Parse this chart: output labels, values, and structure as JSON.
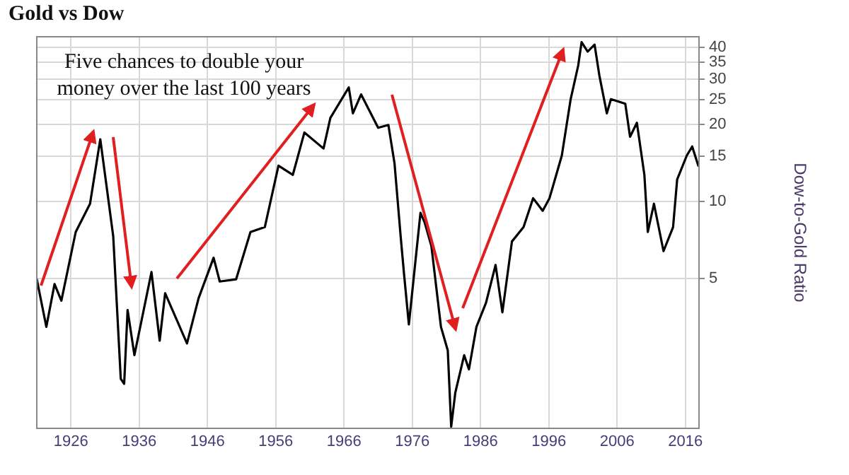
{
  "chart_data": {
    "type": "line",
    "title": "Gold vs Dow",
    "ylabel": "Dow-to-Gold Ratio",
    "annotations": [
      "Five chances to double your money over the last 100 years"
    ],
    "x": [
      1921.0,
      1922.4,
      1923.6,
      1924.6,
      1926.7,
      1928.8,
      1930.3,
      1931.0,
      1932.2,
      1933.3,
      1933.8,
      1934.3,
      1935.3,
      1937.8,
      1939.0,
      1939.8,
      1943.0,
      1944.7,
      1946.9,
      1947.8,
      1950.2,
      1952.3,
      1954.4,
      1956.4,
      1958.5,
      1960.2,
      1963.0,
      1964.0,
      1966.7,
      1967.3,
      1968.5,
      1971.0,
      1972.5,
      1973.4,
      1974.3,
      1974.8,
      1975.5,
      1977.2,
      1977.8,
      1978.8,
      1980.2,
      1981.2,
      1981.7,
      1982.3,
      1983.6,
      1984.3,
      1985.4,
      1986.8,
      1988.2,
      1989.2,
      1990.6,
      1992.3,
      1993.7,
      1995.1,
      1996.1,
      1997.9,
      1999.2,
      2000.3,
      2000.8,
      2001.7,
      2002.7,
      2003.4,
      2004.5,
      2005.1,
      2007.2,
      2007.9,
      2008.9,
      2010.0,
      2010.5,
      2011.4,
      2012.8,
      2014.2,
      2014.8,
      2016.2,
      2017.0,
      2017.9
    ],
    "series": [
      {
        "color": "#000000",
        "values": [
          4.97,
          3.24,
          4.76,
          4.1,
          7.6,
          9.8,
          17.5,
          12.7,
          7.3,
          2.03,
          1.94,
          3.77,
          2.51,
          5.3,
          2.86,
          4.38,
          2.79,
          4.19,
          6.03,
          4.87,
          4.97,
          7.6,
          7.94,
          13.8,
          12.7,
          18.6,
          16.1,
          21.2,
          27.9,
          22.1,
          26.2,
          19.4,
          19.9,
          14.1,
          7.3,
          5.19,
          3.31,
          9.03,
          8.3,
          6.7,
          3.24,
          2.62,
          1.32,
          1.79,
          2.51,
          2.21,
          3.24,
          4.02,
          5.65,
          3.69,
          6.98,
          7.94,
          10.3,
          9.2,
          10.3,
          15.1,
          25.1,
          33.9,
          41.9,
          38.5,
          41.0,
          31.1,
          22.1,
          25.1,
          24.1,
          17.9,
          20.3,
          12.7,
          7.6,
          9.8,
          6.4,
          7.94,
          12.2,
          15.1,
          16.4,
          13.8
        ]
      }
    ],
    "xlim": [
      1921,
      2018
    ],
    "xticks": [
      1926,
      1936,
      1946,
      1956,
      1966,
      1976,
      1986,
      1996,
      2006,
      2016
    ],
    "ylim": [
      1.3,
      44
    ],
    "yticks": [
      5,
      10,
      15,
      20,
      25,
      30,
      35,
      40
    ],
    "log": true,
    "grid": true,
    "marker": "none",
    "line_style": "solid"
  }
}
